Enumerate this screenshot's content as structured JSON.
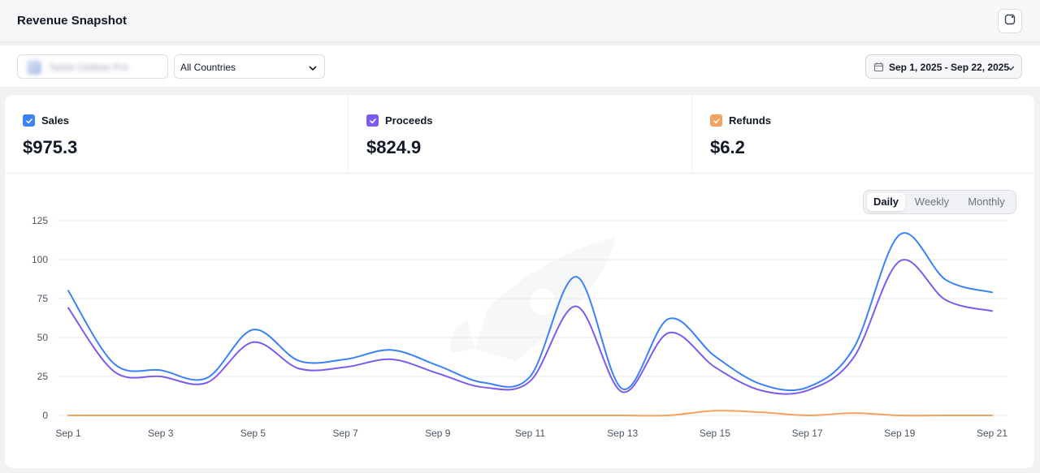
{
  "header": {
    "title": "Revenue Snapshot",
    "corner_icon": "square-arrow-icon"
  },
  "filters": {
    "app_name": "Tarkie Clothes Pro",
    "country": "All Countries",
    "date_range": "Sep 1, 2025 - Sep 22, 2025"
  },
  "metrics": [
    {
      "label": "Sales",
      "value": "$975.3",
      "color": "#3b82f6"
    },
    {
      "label": "Proceeds",
      "value": "$824.9",
      "color": "#7c5cf0"
    },
    {
      "label": "Refunds",
      "value": "$6.2",
      "color": "#f4a261"
    }
  ],
  "granularity": {
    "options": [
      "Daily",
      "Weekly",
      "Monthly"
    ],
    "selected": "Daily"
  },
  "chart_data": {
    "type": "line",
    "x": [
      "Sep 1",
      "Sep 2",
      "Sep 3",
      "Sep 4",
      "Sep 5",
      "Sep 6",
      "Sep 7",
      "Sep 8",
      "Sep 9",
      "Sep 10",
      "Sep 11",
      "Sep 12",
      "Sep 13",
      "Sep 14",
      "Sep 15",
      "Sep 16",
      "Sep 17",
      "Sep 18",
      "Sep 19",
      "Sep 20",
      "Sep 21"
    ],
    "tick_labels": [
      "Sep 1",
      "Sep 3",
      "Sep 5",
      "Sep 7",
      "Sep 9",
      "Sep 11",
      "Sep 13",
      "Sep 15",
      "Sep 17",
      "Sep 19",
      "Sep 21"
    ],
    "y_ticks": [
      0,
      25,
      50,
      75,
      100,
      125
    ],
    "ylim": [
      0,
      125
    ],
    "grid": true,
    "legend": "none",
    "series": [
      {
        "name": "Sales",
        "color": "#3b82f6",
        "values": [
          80,
          33,
          29,
          24,
          55,
          35,
          36,
          42,
          32,
          21,
          25,
          89,
          17,
          62,
          38,
          20,
          18,
          43,
          116,
          87,
          79
        ]
      },
      {
        "name": "Proceeds",
        "color": "#7c5cf0",
        "values": [
          69,
          28,
          25,
          21,
          47,
          30,
          31,
          36,
          27,
          18,
          22,
          70,
          15,
          53,
          31,
          16,
          16,
          37,
          99,
          74,
          67
        ]
      },
      {
        "name": "Refunds",
        "color": "#f4a261",
        "values": [
          0,
          0,
          0,
          0,
          0,
          0,
          0,
          0,
          0,
          0,
          0,
          0,
          0,
          0,
          3,
          2,
          0,
          1.5,
          0,
          0,
          0
        ]
      }
    ]
  }
}
